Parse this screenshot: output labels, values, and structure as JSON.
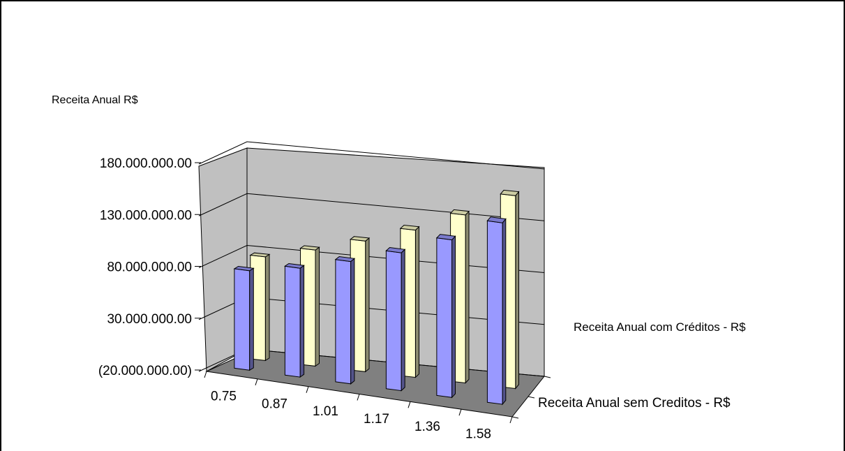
{
  "chart_data": {
    "type": "bar",
    "ylabel": "Receita  Anual  R$",
    "categories": [
      "0.75",
      "0.87",
      "1.01",
      "1.17",
      "1.36",
      "1.58"
    ],
    "series": [
      {
        "name": "Receita Anual sem Creditos - R$",
        "values": [
          76000000,
          85000000,
          98000000,
          113000000,
          132000000,
          155000000
        ],
        "color": "#9999ff"
      },
      {
        "name": "Receita Anual com Créditos - R$",
        "values": [
          80000000,
          92000000,
          106000000,
          122000000,
          142000000,
          166000000
        ],
        "color": "#ffffcc"
      }
    ],
    "yticks": [
      "(20.000.000.00)",
      "30.000.000.00",
      "80.000.000.00",
      "130.000.000.00",
      "180.000.000.00"
    ],
    "ytick_values": [
      -20000000,
      30000000,
      80000000,
      130000000,
      180000000
    ],
    "ylim": [
      -20000000,
      180000000
    ],
    "grid": true,
    "legend": "none"
  }
}
